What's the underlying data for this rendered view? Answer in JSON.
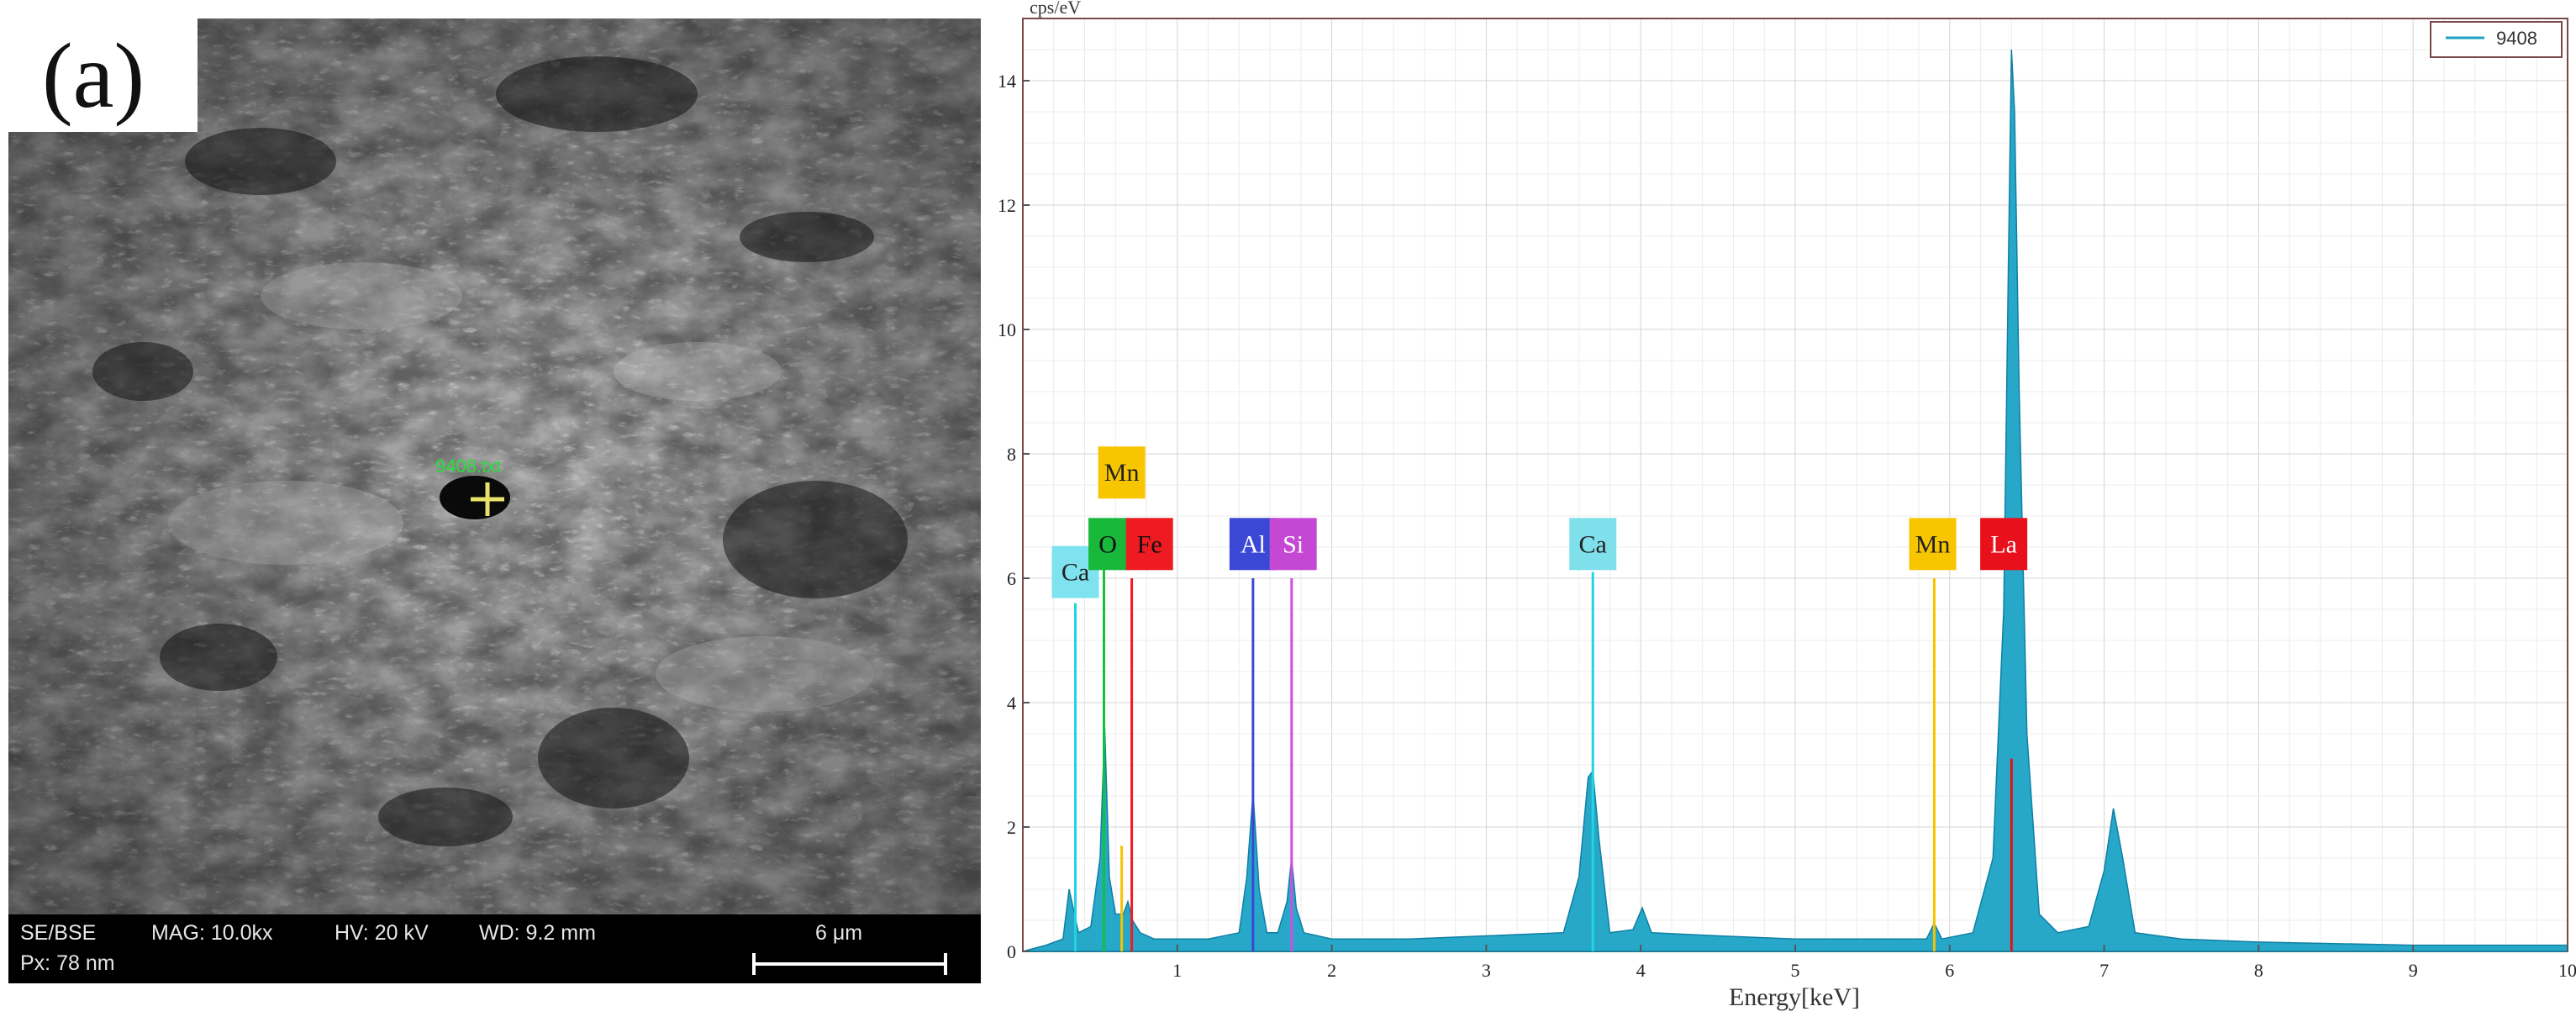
{
  "sem": {
    "panel_label": "(a)",
    "info_mode": "SE/BSE",
    "info_mag": "MAG: 10.0kx",
    "info_hv": "HV: 20 kV",
    "info_wd": "WD: 9.2 mm",
    "info_px": "Px: 78 nm",
    "scale_label": "6 μm",
    "point_label": "9408.txt"
  },
  "chart_data": {
    "type": "area",
    "ylabel": "cps/eV",
    "xlabel": "Energy[keV]",
    "xlim": [
      0,
      10
    ],
    "ylim": [
      0,
      15
    ],
    "x_ticks": [
      1,
      2,
      3,
      4,
      5,
      6,
      7,
      8,
      9,
      10
    ],
    "y_ticks": [
      0,
      2,
      4,
      6,
      8,
      10,
      12,
      14
    ],
    "grid": true,
    "legend_position": "top-right",
    "series": [
      {
        "name": "9408",
        "color": "#1ba3c6",
        "x": [
          0.0,
          0.15,
          0.26,
          0.3,
          0.36,
          0.44,
          0.5,
          0.53,
          0.56,
          0.6,
          0.65,
          0.68,
          0.71,
          0.76,
          0.85,
          1.0,
          1.2,
          1.4,
          1.45,
          1.49,
          1.53,
          1.58,
          1.65,
          1.71,
          1.74,
          1.77,
          1.82,
          2.0,
          2.5,
          3.0,
          3.5,
          3.6,
          3.66,
          3.69,
          3.73,
          3.8,
          3.95,
          4.01,
          4.07,
          4.5,
          5.0,
          5.5,
          5.85,
          5.9,
          5.95,
          6.15,
          6.28,
          6.35,
          6.38,
          6.4,
          6.42,
          6.45,
          6.5,
          6.58,
          6.7,
          6.9,
          7.0,
          7.06,
          7.12,
          7.2,
          7.5,
          8.0,
          9.0,
          10.0
        ],
        "y": [
          0.0,
          0.1,
          0.2,
          1.0,
          0.3,
          0.4,
          1.5,
          3.6,
          1.2,
          0.6,
          0.6,
          0.8,
          0.5,
          0.3,
          0.2,
          0.2,
          0.2,
          0.3,
          1.2,
          2.55,
          1.0,
          0.3,
          0.3,
          0.8,
          1.5,
          0.7,
          0.3,
          0.2,
          0.2,
          0.25,
          0.3,
          1.2,
          2.8,
          2.9,
          1.8,
          0.3,
          0.35,
          0.7,
          0.3,
          0.25,
          0.2,
          0.2,
          0.2,
          0.45,
          0.2,
          0.3,
          1.5,
          5.5,
          11.0,
          14.5,
          13.5,
          9.0,
          3.5,
          0.6,
          0.3,
          0.4,
          1.3,
          2.3,
          1.5,
          0.3,
          0.2,
          0.15,
          0.1,
          0.1
        ]
      }
    ],
    "element_markers": [
      {
        "label": "Ca",
        "energy": 0.34,
        "height": 5.6,
        "color": "#21d3e3"
      },
      {
        "label": "O",
        "energy": 0.525,
        "height": 6.2,
        "color": "#15c03a"
      },
      {
        "label": "Mn",
        "energy": 0.64,
        "height": 1.7,
        "color": "#f5c400"
      },
      {
        "label": "Fe",
        "energy": 0.705,
        "height": 6.0,
        "color": "#f01c24"
      },
      {
        "label": "Al",
        "energy": 1.49,
        "height": 6.0,
        "color": "#3a48d8"
      },
      {
        "label": "Si",
        "energy": 1.74,
        "height": 6.0,
        "color": "#d24ee0"
      },
      {
        "label": "Ca",
        "energy": 3.69,
        "height": 6.1,
        "color": "#21d3e3"
      },
      {
        "label": "Mn",
        "energy": 5.9,
        "height": 6.0,
        "color": "#f5c400"
      },
      {
        "label": "La",
        "energy": 6.4,
        "height": 3.1,
        "color": "#e4101a"
      }
    ],
    "marker_labels": [
      {
        "text": "Ca",
        "energy": 0.34,
        "level": 6.1,
        "bg": "#7fe3ef",
        "fg": "#222"
      },
      {
        "text": "Mn",
        "energy": 0.64,
        "level": 7.7,
        "bg": "#f8c600",
        "fg": "#222"
      },
      {
        "text": "O",
        "energy": 0.55,
        "level": 6.55,
        "bg": "#18b83a",
        "fg": "#111"
      },
      {
        "text": "Fe",
        "energy": 0.82,
        "level": 6.55,
        "bg": "#ee1b22",
        "fg": "#111"
      },
      {
        "text": "Al",
        "energy": 1.49,
        "level": 6.55,
        "bg": "#3b48d6",
        "fg": "#fff"
      },
      {
        "text": "Si",
        "energy": 1.75,
        "level": 6.55,
        "bg": "#c448d4",
        "fg": "#fff"
      },
      {
        "text": "Ca",
        "energy": 3.69,
        "level": 6.55,
        "bg": "#7fe0ec",
        "fg": "#222"
      },
      {
        "text": "Mn",
        "energy": 5.89,
        "level": 6.55,
        "bg": "#f8c600",
        "fg": "#222"
      },
      {
        "text": "La",
        "energy": 6.35,
        "level": 6.55,
        "bg": "#e8101a",
        "fg": "#fff"
      }
    ]
  }
}
